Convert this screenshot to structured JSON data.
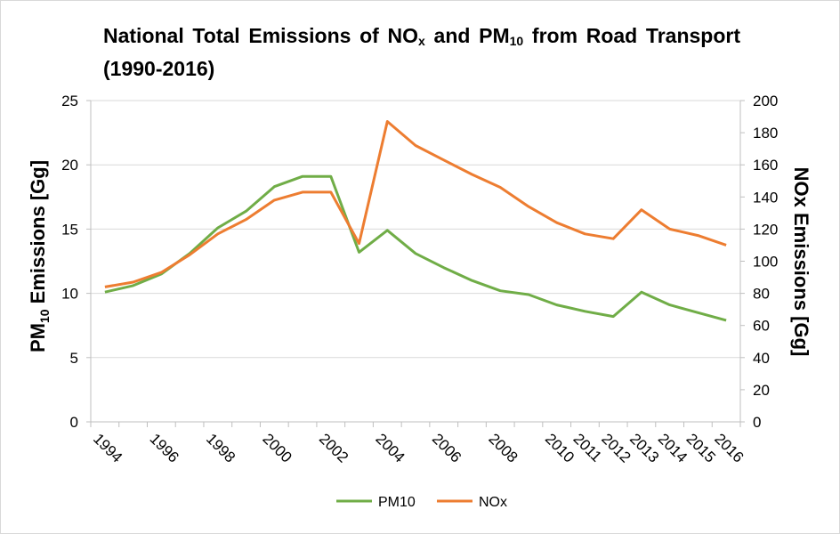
{
  "chart_data": {
    "type": "line",
    "title": {
      "part1": "National Total Emissions of NO",
      "sub1": "x",
      "part2": " and PM",
      "sub2": "10",
      "part3": " from Road Transport (1990-2016)"
    },
    "y_left_label": {
      "main": "PM",
      "sub": "10",
      "rest": " Emissions [Gg]"
    },
    "y_right_label": "NOx Emissions [Gg]",
    "categories": [
      "1994",
      "",
      "1996",
      "",
      "1998",
      "",
      "2000",
      "",
      "2002",
      "",
      "2004",
      "",
      "2006",
      "",
      "2008",
      "",
      "2010",
      "2011",
      "2012",
      "2013",
      "2014",
      "2015",
      "2016"
    ],
    "y_left": {
      "min": 0,
      "max": 25,
      "step": 5,
      "ticks": [
        "0",
        "5",
        "10",
        "15",
        "20",
        "25"
      ]
    },
    "y_right": {
      "min": 0,
      "max": 200,
      "step": 20,
      "ticks": [
        "0",
        "20",
        "40",
        "60",
        "80",
        "100",
        "120",
        "140",
        "160",
        "180",
        "200"
      ]
    },
    "series": [
      {
        "name": "PM10",
        "axis": "left",
        "color": "#70ad47",
        "values": [
          10.1,
          10.6,
          11.5,
          13.1,
          15.1,
          16.4,
          18.3,
          19.1,
          19.1,
          13.2,
          14.9,
          13.1,
          12.0,
          11.0,
          10.2,
          9.9,
          9.1,
          8.6,
          8.2,
          10.1,
          9.1,
          8.5,
          7.9
        ]
      },
      {
        "name": "NOx",
        "axis": "right",
        "color": "#ed7d31",
        "values": [
          84,
          87,
          93,
          104,
          117,
          126,
          138,
          143,
          143,
          111,
          187,
          172,
          163,
          154,
          146,
          134,
          124,
          117,
          114,
          132,
          120,
          116,
          110
        ]
      }
    ],
    "grid": {
      "horizontal": true,
      "vertical": false,
      "color": "#d9d9d9"
    },
    "legend": "bottom"
  }
}
